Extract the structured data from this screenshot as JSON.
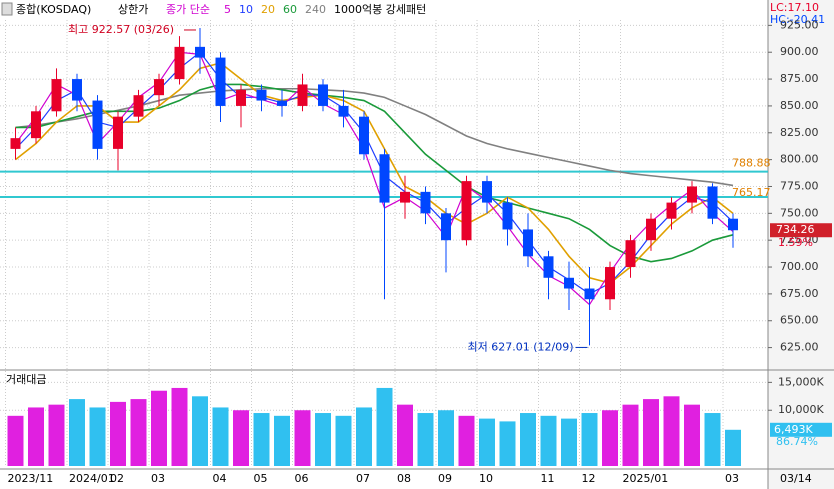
{
  "chart_data": {
    "type": "candlestick",
    "header": {
      "symbol": "종합(KOSDAQ)",
      "mode": "상한가",
      "ma_label": "종가 단순",
      "pattern": "1000억봉 강세패턴",
      "lc": "LC:17.10",
      "hc": "HC:-20.41"
    },
    "annotations": {
      "high": "최고 922.57 (03/26)",
      "low": "최저 627.01 (12/09)"
    },
    "categories": [
      "2023/11",
      null,
      null,
      "2024/01",
      null,
      "02",
      null,
      "03",
      null,
      null,
      "04",
      null,
      "05",
      null,
      "06",
      null,
      null,
      "07",
      null,
      "08",
      null,
      "09",
      null,
      "10",
      null,
      null,
      "11",
      null,
      "12",
      null,
      "2025/01",
      null,
      null,
      null,
      null,
      "03"
    ],
    "x_last_label": "03/14",
    "candles": [
      [
        810,
        830,
        800,
        820
      ],
      [
        820,
        850,
        815,
        845
      ],
      [
        845,
        885,
        840,
        875
      ],
      [
        875,
        880,
        845,
        855
      ],
      [
        855,
        860,
        800,
        810
      ],
      [
        810,
        845,
        790,
        840
      ],
      [
        840,
        865,
        835,
        860
      ],
      [
        860,
        880,
        850,
        875
      ],
      [
        875,
        915,
        870,
        905
      ],
      [
        905,
        922.57,
        880,
        895
      ],
      [
        895,
        900,
        835,
        850
      ],
      [
        850,
        870,
        830,
        865
      ],
      [
        865,
        870,
        845,
        855
      ],
      [
        855,
        865,
        840,
        850
      ],
      [
        850,
        880,
        845,
        870
      ],
      [
        870,
        875,
        845,
        850
      ],
      [
        850,
        865,
        830,
        840
      ],
      [
        840,
        845,
        800,
        805
      ],
      [
        805,
        810,
        670,
        760
      ],
      [
        760,
        785,
        745,
        770
      ],
      [
        770,
        775,
        740,
        750
      ],
      [
        750,
        755,
        695,
        725
      ],
      [
        725,
        785,
        720,
        780
      ],
      [
        780,
        785,
        750,
        760
      ],
      [
        760,
        765,
        720,
        735
      ],
      [
        735,
        750,
        700,
        710
      ],
      [
        710,
        715,
        670,
        690
      ],
      [
        690,
        705,
        660,
        680
      ],
      [
        680,
        700,
        627.01,
        670
      ],
      [
        670,
        705,
        660,
        700
      ],
      [
        700,
        730,
        690,
        725
      ],
      [
        725,
        750,
        715,
        745
      ],
      [
        745,
        765,
        735,
        760
      ],
      [
        760,
        780,
        750,
        775
      ],
      [
        775,
        778,
        740,
        745
      ],
      [
        745,
        750,
        718,
        734.26
      ]
    ],
    "up_color": "#e8002a",
    "down_color": "#0046ff",
    "series": [
      {
        "name": "5",
        "color": "#d000d0",
        "values": [
          815,
          840,
          870,
          860,
          815,
          835,
          858,
          872,
          900,
          898,
          855,
          862,
          856,
          850,
          868,
          852,
          842,
          810,
          755,
          765,
          752,
          728,
          775,
          762,
          738,
          712,
          692,
          682,
          665,
          695,
          722,
          742,
          758,
          772,
          750,
          733
        ]
      },
      {
        "name": "10",
        "color": "#1e3cff",
        "values": [
          810,
          830,
          855,
          865,
          835,
          830,
          848,
          865,
          885,
          900,
          875,
          858,
          858,
          853,
          860,
          860,
          848,
          825,
          785,
          770,
          760,
          740,
          755,
          768,
          750,
          725,
          700,
          688,
          675,
          685,
          705,
          730,
          750,
          765,
          760,
          742
        ]
      },
      {
        "name": "20",
        "color": "#e0a000",
        "values": [
          800,
          815,
          835,
          850,
          850,
          835,
          835,
          850,
          865,
          885,
          890,
          875,
          860,
          855,
          858,
          860,
          855,
          845,
          810,
          775,
          765,
          750,
          740,
          750,
          765,
          755,
          735,
          710,
          690,
          685,
          700,
          720,
          740,
          755,
          765,
          750
        ]
      },
      {
        "name": "60",
        "color": "#1a9a3a",
        "values": [
          830,
          830,
          835,
          840,
          845,
          845,
          845,
          848,
          855,
          865,
          870,
          870,
          868,
          865,
          862,
          860,
          858,
          855,
          845,
          825,
          805,
          790,
          775,
          765,
          760,
          755,
          750,
          745,
          735,
          720,
          710,
          705,
          708,
          715,
          725,
          730
        ]
      },
      {
        "name": "240",
        "color": "#808080",
        "values": [
          830,
          832,
          835,
          838,
          842,
          846,
          850,
          855,
          860,
          862,
          864,
          865,
          866,
          866,
          866,
          865,
          864,
          862,
          858,
          850,
          842,
          832,
          822,
          815,
          810,
          806,
          802,
          798,
          794,
          790,
          787,
          785,
          783,
          781,
          779,
          776
        ]
      }
    ],
    "hlines": [
      788.88,
      765.17
    ],
    "hline_color": "#30c8d0",
    "last_price": 734.26,
    "change_label": "1.59%",
    "ylim": [
      606,
      930
    ],
    "yticks": [
      {
        "value": 625,
        "label": "625.00"
      },
      {
        "value": 650,
        "label": "650.00"
      },
      {
        "value": 675,
        "label": "675.00"
      },
      {
        "value": 700,
        "label": "700.00"
      },
      {
        "value": 725,
        "label": "725.00"
      },
      {
        "value": 750,
        "label": "750.00"
      },
      {
        "value": 775,
        "label": "775.00"
      },
      {
        "value": 800,
        "label": "800.00"
      },
      {
        "value": 825,
        "label": "825.00"
      },
      {
        "value": 850,
        "label": "850.00"
      },
      {
        "value": 875,
        "label": "875.00"
      },
      {
        "value": 900,
        "label": "900.00"
      },
      {
        "value": 925,
        "label": "925.00"
      }
    ],
    "volume": {
      "title": "거래대금",
      "up_color": "#e020e0",
      "down_color": "#30c0f0",
      "values": [
        9000,
        10500,
        11000,
        12000,
        10500,
        11500,
        12000,
        13500,
        14000,
        12500,
        10500,
        10000,
        9500,
        9000,
        10000,
        9500,
        9000,
        10500,
        14000,
        11000,
        9500,
        10000,
        9000,
        8500,
        8000,
        9500,
        9000,
        8500,
        9500,
        10000,
        11000,
        12000,
        12500,
        11000,
        9500,
        6493
      ],
      "last_label": "6,493K",
      "ratio_label": "86.74%",
      "ylim": [
        0,
        16500
      ],
      "yticks": [
        {
          "value": 10000,
          "label": "10,000K"
        },
        {
          "value": 15000,
          "label": "15,000K"
        }
      ]
    },
    "grid": true
  }
}
